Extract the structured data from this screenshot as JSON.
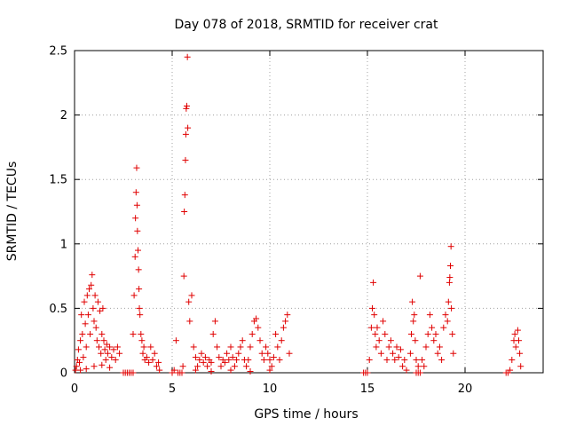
{
  "chart_data": {
    "type": "scatter",
    "title": "Day 078 of 2018, SRMTID for receiver crat",
    "xlabel": "GPS time / hours",
    "ylabel": "SRMTID / TECUs",
    "xlim": [
      0,
      24
    ],
    "ylim": [
      0,
      2.5
    ],
    "x_ticks": [
      0,
      5,
      10,
      15,
      20
    ],
    "y_ticks": [
      0,
      0.5,
      1,
      1.5,
      2,
      2.5
    ],
    "x_tick_labels": [
      "0",
      "5",
      "10",
      "15",
      "20"
    ],
    "y_tick_labels": [
      "0",
      "0.5",
      "1",
      "1.5",
      "2",
      "2.5"
    ],
    "grid": true,
    "marker": "+",
    "color": "#e00000",
    "series": [
      {
        "name": "SRMTID",
        "points": [
          [
            0.05,
            0.02
          ],
          [
            0.1,
            0.05
          ],
          [
            0.15,
            0.1
          ],
          [
            0.2,
            0.18
          ],
          [
            0.25,
            0.08
          ],
          [
            0.3,
            0.25
          ],
          [
            0.35,
            0.45
          ],
          [
            0.4,
            0.3
          ],
          [
            0.45,
            0.12
          ],
          [
            0.5,
            0.55
          ],
          [
            0.55,
            0.38
          ],
          [
            0.6,
            0.2
          ],
          [
            0.65,
            0.6
          ],
          [
            0.7,
            0.45
          ],
          [
            0.75,
            0.65
          ],
          [
            0.8,
            0.3
          ],
          [
            0.85,
            0.68
          ],
          [
            0.9,
            0.76
          ],
          [
            0.95,
            0.5
          ],
          [
            1.0,
            0.4
          ],
          [
            1.05,
            0.6
          ],
          [
            1.1,
            0.35
          ],
          [
            1.15,
            0.25
          ],
          [
            1.2,
            0.55
          ],
          [
            1.25,
            0.2
          ],
          [
            1.3,
            0.48
          ],
          [
            1.35,
            0.15
          ],
          [
            1.4,
            0.3
          ],
          [
            1.45,
            0.5
          ],
          [
            1.5,
            0.25
          ],
          [
            1.55,
            0.18
          ],
          [
            1.6,
            0.1
          ],
          [
            1.65,
            0.22
          ],
          [
            1.7,
            0.15
          ],
          [
            1.8,
            0.2
          ],
          [
            1.9,
            0.12
          ],
          [
            2.0,
            0.18
          ],
          [
            2.1,
            0.1
          ],
          [
            2.2,
            0.2
          ],
          [
            2.3,
            0.15
          ],
          [
            0.3,
            0.02
          ],
          [
            0.6,
            0.03
          ],
          [
            1.0,
            0.05
          ],
          [
            1.4,
            0.06
          ],
          [
            1.8,
            0.04
          ],
          [
            2.5,
            0.0
          ],
          [
            2.6,
            0.0
          ],
          [
            2.7,
            0.0
          ],
          [
            2.8,
            0.0
          ],
          [
            2.9,
            0.0
          ],
          [
            3.0,
            0.0
          ],
          [
            3.0,
            0.3
          ],
          [
            3.05,
            0.6
          ],
          [
            3.1,
            0.9
          ],
          [
            3.12,
            1.2
          ],
          [
            3.15,
            1.4
          ],
          [
            3.18,
            1.59
          ],
          [
            3.2,
            1.3
          ],
          [
            3.22,
            1.1
          ],
          [
            3.25,
            0.95
          ],
          [
            3.28,
            0.8
          ],
          [
            3.3,
            0.65
          ],
          [
            3.32,
            0.5
          ],
          [
            3.35,
            0.45
          ],
          [
            3.4,
            0.3
          ],
          [
            3.45,
            0.25
          ],
          [
            3.5,
            0.15
          ],
          [
            3.55,
            0.2
          ],
          [
            3.6,
            0.1
          ],
          [
            3.7,
            0.12
          ],
          [
            3.8,
            0.08
          ],
          [
            3.9,
            0.2
          ],
          [
            4.0,
            0.1
          ],
          [
            4.1,
            0.15
          ],
          [
            4.2,
            0.05
          ],
          [
            4.3,
            0.08
          ],
          [
            4.35,
            0.02
          ],
          [
            5.0,
            0.0
          ],
          [
            5.1,
            0.02
          ],
          [
            5.2,
            0.25
          ],
          [
            5.3,
            0.0
          ],
          [
            5.4,
            0.0
          ],
          [
            5.5,
            0.0
          ],
          [
            5.55,
            0.05
          ],
          [
            5.6,
            0.75
          ],
          [
            5.62,
            1.25
          ],
          [
            5.65,
            1.38
          ],
          [
            5.68,
            1.65
          ],
          [
            5.7,
            1.85
          ],
          [
            5.72,
            2.05
          ],
          [
            5.75,
            2.07
          ],
          [
            5.78,
            2.45
          ],
          [
            5.8,
            1.9
          ],
          [
            5.85,
            0.55
          ],
          [
            5.9,
            0.4
          ],
          [
            6.0,
            0.6
          ],
          [
            6.1,
            0.2
          ],
          [
            6.2,
            0.12
          ],
          [
            6.3,
            0.05
          ],
          [
            6.4,
            0.1
          ],
          [
            6.5,
            0.15
          ],
          [
            6.6,
            0.08
          ],
          [
            6.7,
            0.12
          ],
          [
            6.8,
            0.05
          ],
          [
            6.9,
            0.1
          ],
          [
            7.0,
            0.08
          ],
          [
            7.1,
            0.3
          ],
          [
            7.2,
            0.4
          ],
          [
            7.3,
            0.2
          ],
          [
            7.4,
            0.12
          ],
          [
            7.5,
            0.05
          ],
          [
            7.6,
            0.1
          ],
          [
            7.7,
            0.08
          ],
          [
            7.8,
            0.15
          ],
          [
            7.9,
            0.1
          ],
          [
            8.0,
            0.2
          ],
          [
            8.1,
            0.12
          ],
          [
            8.2,
            0.05
          ],
          [
            8.3,
            0.1
          ],
          [
            8.4,
            0.15
          ],
          [
            8.5,
            0.2
          ],
          [
            8.6,
            0.25
          ],
          [
            8.7,
            0.1
          ],
          [
            8.8,
            0.05
          ],
          [
            8.9,
            0.1
          ],
          [
            9.0,
            0.2
          ],
          [
            9.1,
            0.3
          ],
          [
            9.2,
            0.4
          ],
          [
            9.3,
            0.42
          ],
          [
            9.4,
            0.35
          ],
          [
            9.5,
            0.25
          ],
          [
            9.6,
            0.15
          ],
          [
            9.7,
            0.1
          ],
          [
            9.8,
            0.2
          ],
          [
            9.9,
            0.15
          ],
          [
            10.0,
            0.1
          ],
          [
            10.1,
            0.05
          ],
          [
            10.2,
            0.12
          ],
          [
            10.3,
            0.3
          ],
          [
            10.4,
            0.2
          ],
          [
            10.5,
            0.1
          ],
          [
            10.6,
            0.25
          ],
          [
            10.7,
            0.35
          ],
          [
            10.8,
            0.4
          ],
          [
            10.9,
            0.45
          ],
          [
            11.0,
            0.15
          ],
          [
            6.2,
            0.02
          ],
          [
            7.0,
            0.01
          ],
          [
            8.0,
            0.02
          ],
          [
            9.0,
            0.01
          ],
          [
            10.0,
            0.02
          ],
          [
            14.8,
            0.0
          ],
          [
            14.9,
            0.0
          ],
          [
            15.0,
            0.0
          ],
          [
            15.1,
            0.1
          ],
          [
            15.2,
            0.35
          ],
          [
            15.25,
            0.5
          ],
          [
            15.3,
            0.7
          ],
          [
            15.35,
            0.45
          ],
          [
            15.4,
            0.3
          ],
          [
            15.45,
            0.2
          ],
          [
            15.5,
            0.35
          ],
          [
            15.6,
            0.25
          ],
          [
            15.7,
            0.15
          ],
          [
            15.8,
            0.4
          ],
          [
            15.9,
            0.3
          ],
          [
            16.0,
            0.1
          ],
          [
            16.1,
            0.2
          ],
          [
            16.2,
            0.25
          ],
          [
            16.3,
            0.15
          ],
          [
            16.4,
            0.1
          ],
          [
            16.5,
            0.2
          ],
          [
            16.6,
            0.12
          ],
          [
            16.7,
            0.18
          ],
          [
            16.8,
            0.05
          ],
          [
            16.9,
            0.1
          ],
          [
            17.0,
            0.02
          ],
          [
            17.2,
            0.15
          ],
          [
            17.25,
            0.3
          ],
          [
            17.3,
            0.55
          ],
          [
            17.35,
            0.4
          ],
          [
            17.4,
            0.45
          ],
          [
            17.45,
            0.25
          ],
          [
            17.5,
            0.1
          ],
          [
            17.6,
            0.05
          ],
          [
            17.7,
            0.75
          ],
          [
            17.8,
            0.1
          ],
          [
            17.9,
            0.05
          ],
          [
            18.0,
            0.2
          ],
          [
            18.1,
            0.3
          ],
          [
            18.2,
            0.45
          ],
          [
            18.3,
            0.35
          ],
          [
            18.4,
            0.25
          ],
          [
            18.5,
            0.3
          ],
          [
            18.6,
            0.15
          ],
          [
            18.7,
            0.2
          ],
          [
            18.8,
            0.1
          ],
          [
            18.9,
            0.35
          ],
          [
            19.0,
            0.45
          ],
          [
            19.1,
            0.4
          ],
          [
            19.15,
            0.55
          ],
          [
            19.2,
            0.7
          ],
          [
            19.22,
            0.74
          ],
          [
            19.25,
            0.83
          ],
          [
            19.28,
            0.98
          ],
          [
            19.3,
            0.5
          ],
          [
            19.35,
            0.3
          ],
          [
            19.4,
            0.15
          ],
          [
            17.5,
            0.0
          ],
          [
            17.6,
            0.0
          ],
          [
            17.7,
            0.0
          ],
          [
            22.1,
            0.0
          ],
          [
            22.2,
            0.0
          ],
          [
            22.3,
            0.02
          ],
          [
            22.4,
            0.1
          ],
          [
            22.5,
            0.25
          ],
          [
            22.55,
            0.3
          ],
          [
            22.6,
            0.2
          ],
          [
            22.7,
            0.33
          ],
          [
            22.75,
            0.25
          ],
          [
            22.8,
            0.15
          ],
          [
            22.85,
            0.05
          ]
        ]
      }
    ]
  }
}
